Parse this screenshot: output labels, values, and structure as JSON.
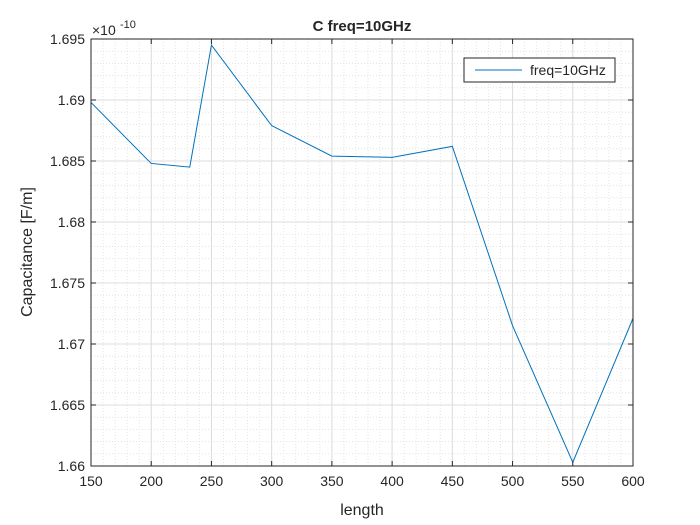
{
  "chart_data": {
    "type": "line",
    "title": "C freq=10GHz",
    "xlabel": "length",
    "ylabel": "Capacitance [F/m]",
    "exponent_label": "×10",
    "exponent_power": "-10",
    "xlim": [
      150,
      600
    ],
    "ylim": [
      1.66,
      1.695
    ],
    "xticks": [
      150,
      200,
      250,
      300,
      350,
      400,
      450,
      500,
      550,
      600
    ],
    "xtick_labels": [
      "150",
      "200",
      "250",
      "300",
      "350",
      "400",
      "450",
      "500",
      "550",
      "600"
    ],
    "yticks": [
      1.66,
      1.665,
      1.67,
      1.675,
      1.68,
      1.685,
      1.69,
      1.695
    ],
    "ytick_labels": [
      "1.66",
      "1.665",
      "1.67",
      "1.675",
      "1.68",
      "1.685",
      "1.69",
      "1.695"
    ],
    "grid": true,
    "minor_grid": true,
    "legend_position": "top-right",
    "series": [
      {
        "name": "freq=10GHz",
        "color": "#0072bd",
        "x": [
          150,
          200,
          232,
          250,
          300,
          350,
          400,
          450,
          500,
          550,
          600
        ],
        "y": [
          1.6898,
          1.6848,
          1.6845,
          1.6945,
          1.6879,
          1.6854,
          1.6853,
          1.6862,
          1.6715,
          1.6603,
          1.6721
        ]
      }
    ]
  }
}
